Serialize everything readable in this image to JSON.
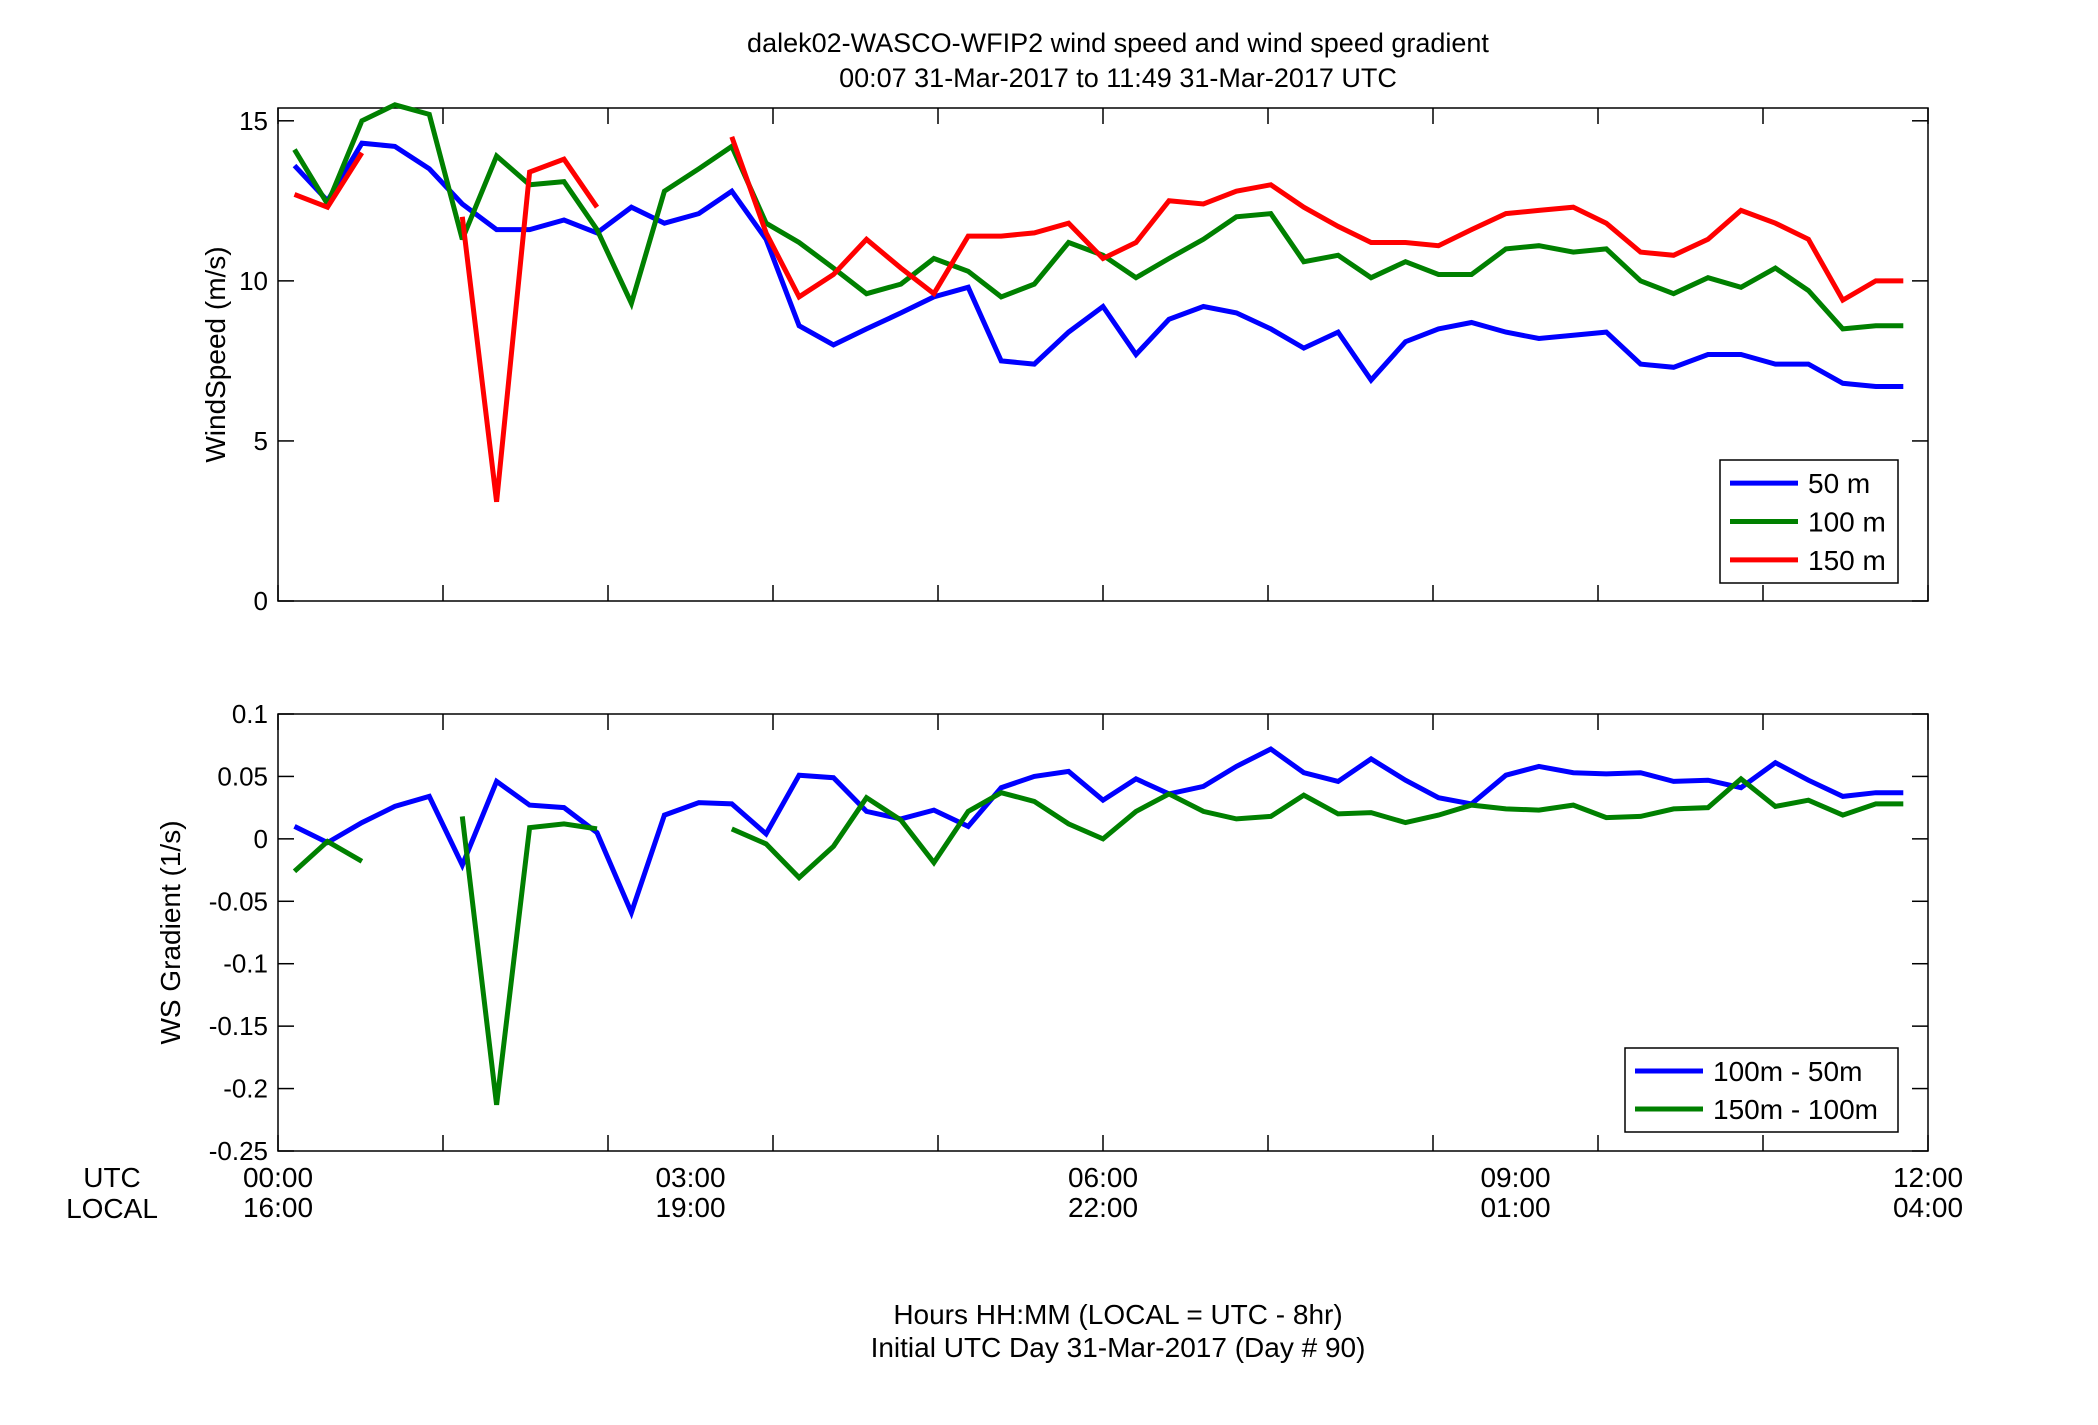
{
  "figure": {
    "title_line1": "dalek02-WASCO-WFIP2  wind speed and wind speed gradient",
    "title_line2": "00:07 31-Mar-2017 to 11:49 31-Mar-2017  UTC",
    "row_label_utc": "UTC",
    "row_label_local": "LOCAL",
    "xlabel_line1": "Hours HH:MM  (LOCAL = UTC - 8hr)",
    "xlabel_line2": "Initial UTC Day 31-Mar-2017 (Day # 90)",
    "utc_ticks": [
      "00:00",
      "03:00",
      "06:00",
      "09:00",
      "12:00"
    ],
    "local_ticks": [
      "16:00",
      "19:00",
      "22:00",
      "01:00",
      "04:00"
    ]
  },
  "chart_data": [
    {
      "type": "line",
      "ylabel": "WindSpeed (m/s)",
      "xlim": [
        0,
        12
      ],
      "ylim": [
        0,
        15.4
      ],
      "x_ticks": [
        0,
        1.2,
        2.4,
        3.6,
        4.8,
        6,
        7.2,
        8.4,
        9.6,
        10.8,
        12
      ],
      "y_ticks": [
        0,
        5,
        10,
        15
      ],
      "y_tick_labels": [
        "0",
        "5",
        "10",
        "15"
      ],
      "grid": false,
      "legend_position": "bottom-right",
      "series": [
        {
          "name": "50 m",
          "color": "#0000ff",
          "x": [
            0.12,
            0.36,
            0.61,
            0.85,
            1.1,
            1.34,
            1.59,
            1.83,
            2.08,
            2.32,
            2.57,
            2.81,
            3.06,
            3.3,
            3.55,
            3.79,
            4.04,
            4.28,
            4.53,
            4.77,
            5.02,
            5.26,
            5.5,
            5.75,
            6,
            6.24,
            6.48,
            6.73,
            6.97,
            7.22,
            7.46,
            7.71,
            7.95,
            8.2,
            8.44,
            8.68,
            8.93,
            9.17,
            9.42,
            9.66,
            9.91,
            10.15,
            10.4,
            10.64,
            10.89,
            11.13,
            11.38,
            11.62,
            11.82
          ],
          "y": [
            13.6,
            12.5,
            14.3,
            14.2,
            13.5,
            12.4,
            11.6,
            11.6,
            11.9,
            11.5,
            12.3,
            11.8,
            12.1,
            12.8,
            11.3,
            8.6,
            8.0,
            8.5,
            9.0,
            9.5,
            9.8,
            7.5,
            7.4,
            8.4,
            9.2,
            7.7,
            8.8,
            9.2,
            9.0,
            8.5,
            7.9,
            8.4,
            6.9,
            8.1,
            8.5,
            8.7,
            8.4,
            8.2,
            8.3,
            8.4,
            7.4,
            7.3,
            7.7,
            7.7,
            7.4,
            7.4,
            6.8,
            6.7,
            6.7
          ]
        },
        {
          "name": "100 m",
          "color": "#008000",
          "x": [
            0.12,
            0.36,
            0.61,
            0.85,
            1.1,
            1.34,
            1.59,
            1.83,
            2.08,
            2.32,
            2.57,
            2.81,
            3.06,
            3.3,
            3.55,
            3.79,
            4.04,
            4.28,
            4.53,
            4.77,
            5.02,
            5.26,
            5.5,
            5.75,
            6,
            6.24,
            6.48,
            6.73,
            6.97,
            7.22,
            7.46,
            7.71,
            7.95,
            8.2,
            8.44,
            8.68,
            8.93,
            9.17,
            9.42,
            9.66,
            9.91,
            10.15,
            10.4,
            10.64,
            10.89,
            11.13,
            11.38,
            11.62,
            11.82
          ],
          "y": [
            14.1,
            12.4,
            15.0,
            15.5,
            15.2,
            11.3,
            13.9,
            13.0,
            13.1,
            11.6,
            9.3,
            12.8,
            13.5,
            14.2,
            11.8,
            11.2,
            10.4,
            9.6,
            9.9,
            10.7,
            10.3,
            9.5,
            9.9,
            11.2,
            10.8,
            10.1,
            10.7,
            11.3,
            12.0,
            12.1,
            10.6,
            10.8,
            10.1,
            10.6,
            10.2,
            10.2,
            11.0,
            11.1,
            10.9,
            11.0,
            10.0,
            9.6,
            10.1,
            9.8,
            10.4,
            9.7,
            8.5,
            8.6,
            8.6
          ],
          "gaps_after_x": []
        },
        {
          "name": "150 m",
          "color": "#ff0000",
          "segments": [
            {
              "x": [
                0.12,
                0.36,
                0.61
              ],
              "y": [
                12.7,
                12.3,
                14.0
              ]
            },
            {
              "x": [
                1.34,
                1.59,
                1.83,
                2.08,
                2.32
              ],
              "y": [
                12.0,
                3.1,
                13.4,
                13.8,
                12.3
              ]
            },
            {
              "x": [
                3.3,
                3.55,
                3.79,
                4.04,
                4.28,
                4.53,
                4.77,
                5.02,
                5.26,
                5.5,
                5.75,
                6,
                6.24,
                6.48,
                6.73,
                6.97,
                7.22,
                7.46,
                7.71,
                7.95,
                8.2,
                8.44,
                8.68,
                8.93,
                9.17,
                9.42,
                9.66,
                9.91,
                10.15,
                10.4,
                10.64,
                10.89,
                11.13,
                11.38,
                11.62,
                11.82
              ],
              "y": [
                14.5,
                11.5,
                9.5,
                10.2,
                11.3,
                10.4,
                9.6,
                11.4,
                11.4,
                11.5,
                11.8,
                10.7,
                11.2,
                12.5,
                12.4,
                12.8,
                13.0,
                12.3,
                11.7,
                11.2,
                11.2,
                11.1,
                11.6,
                12.1,
                12.2,
                12.3,
                11.8,
                10.9,
                10.8,
                11.3,
                12.2,
                11.8,
                11.3,
                9.4,
                10.0,
                10.0
              ]
            }
          ]
        }
      ]
    },
    {
      "type": "line",
      "ylabel": "WS Gradient (1/s)",
      "xlim": [
        0,
        12
      ],
      "ylim": [
        -0.25,
        0.1
      ],
      "x_ticks": [
        0,
        1.2,
        2.4,
        3.6,
        4.8,
        6,
        7.2,
        8.4,
        9.6,
        10.8,
        12
      ],
      "y_ticks": [
        -0.25,
        -0.2,
        -0.15,
        -0.1,
        -0.05,
        0,
        0.05,
        0.1
      ],
      "y_tick_labels": [
        "-0.25",
        "-0.2",
        "-0.15",
        "-0.1",
        "-0.05",
        "0",
        "0.05",
        "0.1"
      ],
      "grid": false,
      "legend_position": "bottom-right",
      "series": [
        {
          "name": "100m - 50m",
          "color": "#0000ff",
          "segments": [
            {
              "x": [
                0.12,
                0.36,
                0.61,
                0.85,
                1.1,
                1.34,
                1.59,
                1.83,
                2.08,
                2.32,
                2.57,
                2.81,
                3.06,
                3.3,
                3.55,
                3.79,
                4.04,
                4.28,
                4.53,
                4.77,
                5.02,
                5.26,
                5.5,
                5.75,
                6,
                6.24,
                6.48,
                6.73,
                6.97,
                7.22,
                7.46,
                7.71,
                7.95,
                8.2,
                8.44,
                8.68,
                8.93,
                9.17,
                9.42,
                9.66,
                9.91,
                10.15,
                10.4,
                10.64,
                10.89,
                11.13,
                11.38,
                11.62,
                11.82
              ],
              "y": [
                0.01,
                -0.003,
                0.013,
                0.026,
                0.034,
                -0.021,
                0.046,
                0.027,
                0.025,
                0.005,
                -0.059,
                0.019,
                0.029,
                0.028,
                0.004,
                0.051,
                0.049,
                0.022,
                0.016,
                0.023,
                0.01,
                0.041,
                0.05,
                0.054,
                0.031,
                0.048,
                0.036,
                0.042,
                0.058,
                0.072,
                0.053,
                0.046,
                0.064,
                0.047,
                0.033,
                0.028,
                0.051,
                0.058,
                0.053,
                0.052,
                0.053,
                0.046,
                0.047,
                0.041,
                0.061,
                0.047,
                0.034,
                0.037,
                0.037
              ]
            }
          ]
        },
        {
          "name": "150m - 100m",
          "color": "#008000",
          "segments": [
            {
              "x": [
                0.12,
                0.36,
                0.61
              ],
              "y": [
                -0.026,
                -0.002,
                -0.018
              ]
            },
            {
              "x": [
                1.34,
                1.59,
                1.83,
                2.08,
                2.32
              ],
              "y": [
                0.018,
                -0.213,
                0.009,
                0.012,
                0.008
              ]
            },
            {
              "x": [
                3.3,
                3.55,
                3.79,
                4.04,
                4.28,
                4.53,
                4.77,
                5.02,
                5.26,
                5.5,
                5.75,
                6,
                6.24,
                6.48,
                6.73,
                6.97,
                7.22,
                7.46,
                7.71,
                7.95,
                8.2,
                8.44,
                8.68,
                8.93,
                9.17,
                9.42,
                9.66,
                9.91,
                10.15,
                10.4,
                10.64,
                10.89,
                11.13,
                11.38,
                11.62,
                11.82
              ],
              "y": [
                0.008,
                -0.004,
                -0.031,
                -0.006,
                0.033,
                0.015,
                -0.019,
                0.022,
                0.037,
                0.03,
                0.012,
                0.0,
                0.022,
                0.036,
                0.022,
                0.016,
                0.018,
                0.035,
                0.02,
                0.021,
                0.013,
                0.019,
                0.027,
                0.024,
                0.023,
                0.027,
                0.017,
                0.018,
                0.024,
                0.025,
                0.048,
                0.026,
                0.031,
                0.019,
                0.028,
                0.028
              ]
            }
          ]
        }
      ]
    }
  ]
}
